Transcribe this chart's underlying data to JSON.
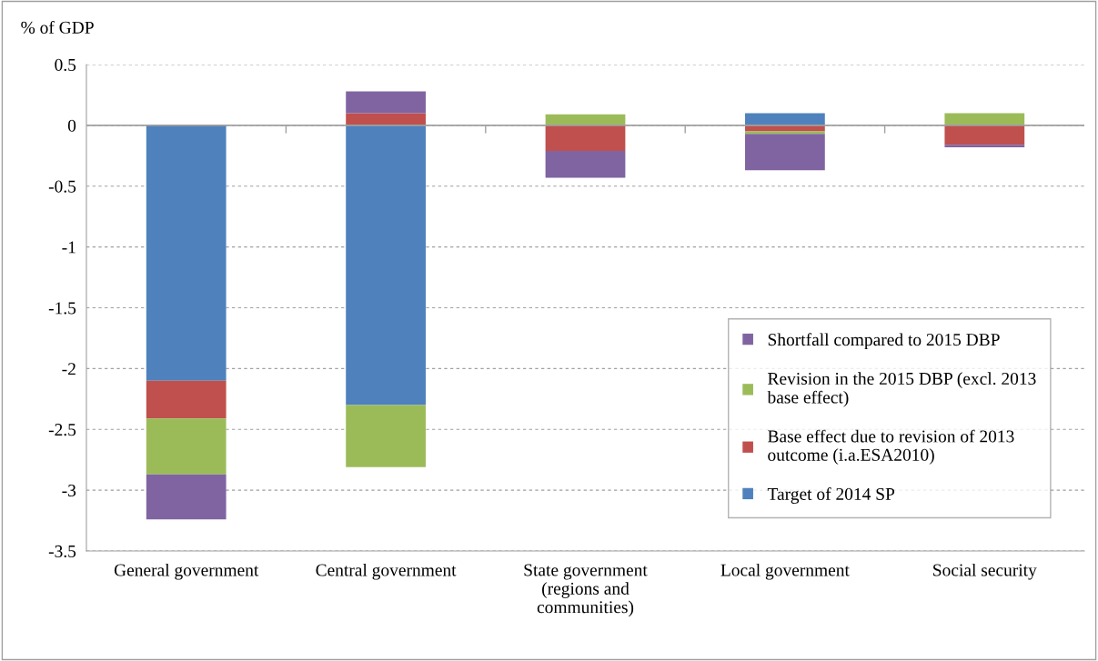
{
  "chart_data": {
    "type": "bar",
    "stacked": true,
    "ylabel": "% of GDP",
    "categories": [
      "General government",
      "Central government",
      "State government\n(regions and\ncommunities)",
      "Local government",
      "Social security"
    ],
    "series": [
      {
        "name": "Target of 2014 SP",
        "color": "#4f81bd",
        "values": [
          -2.1,
          -2.3,
          0,
          0.1,
          0
        ]
      },
      {
        "name": "Base effect due to revision of 2013\noutcome (i.a.ESA2010)",
        "color": "#c0504d",
        "values": [
          -0.31,
          0.1,
          -0.21,
          -0.05,
          -0.16
        ]
      },
      {
        "name": "Revision in the 2015 DBP (excl. 2013\nbase effect)",
        "color": "#9bbb59",
        "values": [
          -0.46,
          -0.51,
          0.09,
          -0.02,
          0.1
        ]
      },
      {
        "name": "Shortfall compared to 2015 DBP",
        "color": "#8064a2",
        "values": [
          -0.37,
          0.18,
          -0.22,
          -0.3,
          -0.02
        ]
      }
    ],
    "ylim": [
      -3.5,
      0.5
    ],
    "yticks": [
      0.5,
      0,
      -0.5,
      -1,
      -1.5,
      -2,
      -2.5,
      -3,
      -3.5
    ],
    "grid": "y",
    "legend": "bottom right"
  }
}
